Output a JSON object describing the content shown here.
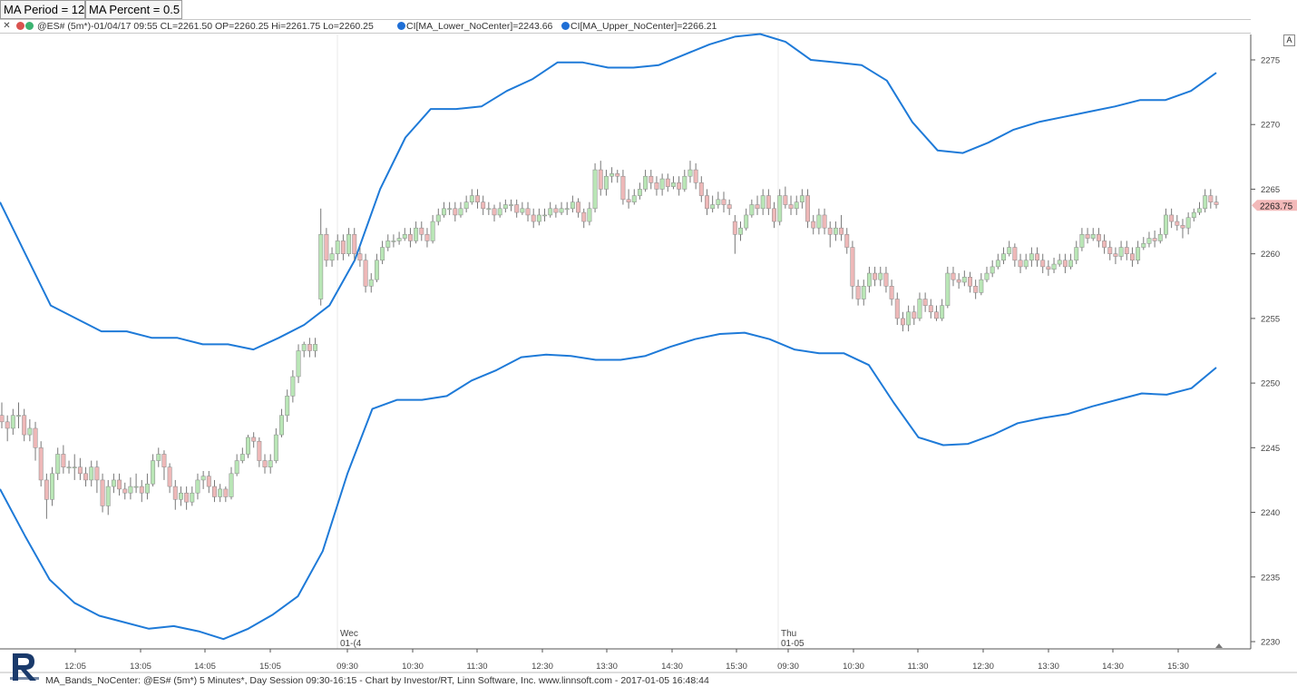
{
  "params": {
    "ma_period_label": "MA Period = 12",
    "ma_percent_label": "MA Percent = 0.5"
  },
  "info": {
    "close_glyph": "✕",
    "symbol_text": "@ES# (5m*)-01/04/17 09:55 CL=2261.50 OP=2260.25 Hi=2261.75 Lo=2260.25",
    "lower_text": "CI[MA_Lower_NoCenter]=2243.66",
    "upper_text": "CI[MA_Upper_NoCenter]=2266.21",
    "dot_colors": [
      "#d9534f",
      "#3cb371",
      "#1f6fd6",
      "#1f6fd6"
    ]
  },
  "a_button_label": "A",
  "footer": "MA_Bands_NoCenter: @ES# (5m*) 5 Minutes*, Day Session 09:30-16:15 - Chart by Investor/RT, Linn Software, Inc. www.linnsoft.com - 2017-01-05 16:48:44",
  "chart_data": {
    "type": "candlestick",
    "price_axis": {
      "min": 2230,
      "max": 2275,
      "ticks": [
        2230,
        2235,
        2240,
        2245,
        2250,
        2255,
        2260,
        2265,
        2270,
        2275
      ]
    },
    "last_price_label": "2263.75",
    "time_ticks": [
      "12:05",
      "13:05",
      "14:05",
      "15:05",
      "09:30",
      "10:30",
      "11:30",
      "12:30",
      "13:30",
      "14:30",
      "15:30",
      "09:30",
      "10:30",
      "11:30",
      "12:30",
      "13:30",
      "14:30",
      "15:30"
    ],
    "session_labels": [
      {
        "day": "Wec",
        "date": "01-(4"
      },
      {
        "day": "Thu",
        "date": "01-05"
      }
    ],
    "colors": {
      "band": "#1e7ad8",
      "up": "#b9e6b6",
      "down": "#eeb8b8",
      "wick": "#777777",
      "last_price_bg": "#f3b9b9"
    },
    "upper_band": [
      2264,
      2260,
      2256,
      2255,
      2254,
      2254,
      2253.5,
      2253.5,
      2253,
      2253,
      2252.6,
      2253.5,
      2254.5,
      2256,
      2259.5,
      2265,
      2269,
      2271.2,
      2271.2,
      2271.4,
      2272.6,
      2273.5,
      2274.8,
      2274.8,
      2274.4,
      2274.4,
      2274.6,
      2275.4,
      2276.2,
      2276.8,
      2277,
      2276.4,
      2275,
      2274.8,
      2274.6,
      2273.4,
      2270.2,
      2268,
      2267.8,
      2268.6,
      2269.6,
      2270.2,
      2270.6,
      2271,
      2271.4,
      2271.9,
      2271.9,
      2272.6,
      2274
    ],
    "lower_band": [
      2241.8,
      2238.2,
      2234.8,
      2233,
      2232,
      2231.5,
      2231,
      2231.2,
      2230.8,
      2230.2,
      2231,
      2232.1,
      2233.5,
      2237,
      2243,
      2248,
      2248.7,
      2248.7,
      2249,
      2250.2,
      2251,
      2252,
      2252.2,
      2252.1,
      2251.8,
      2251.8,
      2252.1,
      2252.8,
      2253.4,
      2253.8,
      2253.9,
      2253.4,
      2252.6,
      2252.3,
      2252.3,
      2251.4,
      2248.5,
      2245.8,
      2245.2,
      2245.3,
      2246,
      2246.9,
      2247.3,
      2247.6,
      2248.2,
      2248.7,
      2249.2,
      2249.1,
      2249.6,
      2251.2
    ],
    "candles": [
      [
        2247.5,
        2247,
        2248.5,
        2246.5
      ],
      [
        2247,
        2246.5,
        2247.5,
        2245.5
      ],
      [
        2246.5,
        2247.5,
        2248,
        2246
      ],
      [
        2247.5,
        2247.5,
        2248.5,
        2246.5
      ],
      [
        2247.5,
        2246,
        2248,
        2245.5
      ],
      [
        2246,
        2246.5,
        2247.2,
        2245.5
      ],
      [
        2246.5,
        2245,
        2247,
        2244
      ],
      [
        2245,
        2242.5,
        2245.5,
        2242
      ],
      [
        2242.5,
        2241,
        2243,
        2239.5
      ],
      [
        2241,
        2243,
        2243.5,
        2240.5
      ],
      [
        2243,
        2244.5,
        2245,
        2242.5
      ],
      [
        2244.5,
        2243.5,
        2245.2,
        2243
      ],
      [
        2243.5,
        2243.5,
        2244,
        2243
      ],
      [
        2243.5,
        2243.5,
        2244.5,
        2242.5
      ],
      [
        2243.5,
        2243,
        2244.2,
        2242.5
      ],
      [
        2243,
        2242.5,
        2243.5,
        2242
      ],
      [
        2242.5,
        2243.5,
        2244,
        2242
      ],
      [
        2243.5,
        2242.5,
        2244,
        2241.5
      ],
      [
        2242.5,
        2240.5,
        2243,
        2240
      ],
      [
        2240.5,
        2242,
        2242.5,
        2239.8
      ],
      [
        2242,
        2242.5,
        2243,
        2241.5
      ],
      [
        2242.5,
        2241.8,
        2243,
        2241.3
      ],
      [
        2241.8,
        2241.5,
        2242.3,
        2241
      ],
      [
        2241.5,
        2242,
        2242.7,
        2241
      ],
      [
        2242,
        2242,
        2243,
        2241.5
      ],
      [
        2242,
        2241.5,
        2242.5,
        2240.8
      ],
      [
        2241.5,
        2242.2,
        2243,
        2241
      ],
      [
        2242.2,
        2244,
        2244.5,
        2242
      ],
      [
        2244,
        2244.5,
        2245,
        2243.5
      ],
      [
        2244.5,
        2243.5,
        2244.8,
        2242.5
      ],
      [
        2243.5,
        2242,
        2243.8,
        2241.5
      ],
      [
        2242,
        2241,
        2242.5,
        2240.2
      ],
      [
        2241,
        2241.5,
        2242,
        2240.5
      ],
      [
        2241.5,
        2240.8,
        2242,
        2240.2
      ],
      [
        2240.8,
        2241.5,
        2242,
        2240.5
      ],
      [
        2241.5,
        2242.5,
        2243,
        2241
      ],
      [
        2242.5,
        2242.8,
        2243.2,
        2241.8
      ],
      [
        2242.8,
        2242,
        2243.2,
        2241.5
      ],
      [
        2242,
        2241.2,
        2242.5,
        2240.8
      ],
      [
        2241.2,
        2241.8,
        2242.2,
        2240.8
      ],
      [
        2241.8,
        2241.2,
        2242,
        2240.8
      ],
      [
        2241.2,
        2243,
        2243.5,
        2241
      ],
      [
        2243,
        2244,
        2244.5,
        2242.8
      ],
      [
        2244,
        2244.5,
        2245,
        2243.8
      ],
      [
        2244.5,
        2245.8,
        2246,
        2244.2
      ],
      [
        2245.8,
        2245.5,
        2246.2,
        2245
      ],
      [
        2245.5,
        2244,
        2245.8,
        2243.5
      ],
      [
        2244,
        2243.5,
        2244.5,
        2243
      ],
      [
        2243.5,
        2244,
        2244.5,
        2243
      ],
      [
        2244,
        2246,
        2246.5,
        2243.8
      ],
      [
        2246,
        2247.5,
        2248,
        2245.8
      ],
      [
        2247.5,
        2249,
        2249.5,
        2247
      ],
      [
        2249,
        2250.5,
        2251,
        2248.5
      ],
      [
        2250.5,
        2252.5,
        2253,
        2250
      ],
      [
        2252.5,
        2253,
        2253.2,
        2252
      ],
      [
        2253,
        2252.5,
        2253.5,
        2252
      ],
      [
        2252.5,
        2253,
        2253.5,
        2252
      ],
      [
        2256.5,
        2261.5,
        2263.5,
        2256
      ],
      [
        2261.5,
        2259.5,
        2262,
        2259
      ],
      [
        2259.5,
        2260,
        2260.5,
        2259
      ],
      [
        2260,
        2261,
        2261.5,
        2259.5
      ],
      [
        2261,
        2260,
        2261.5,
        2259.5
      ],
      [
        2260,
        2261.5,
        2262,
        2259.8
      ],
      [
        2261.5,
        2260,
        2262,
        2259.5
      ],
      [
        2260,
        2259.5,
        2260.5,
        2259
      ],
      [
        2259.5,
        2257.5,
        2260,
        2257
      ],
      [
        2257.5,
        2258,
        2258.5,
        2257
      ],
      [
        2258,
        2259.5,
        2260,
        2257.8
      ],
      [
        2259.5,
        2260.5,
        2261,
        2259.2
      ],
      [
        2260.5,
        2261,
        2261.5,
        2260.2
      ],
      [
        2261,
        2261,
        2261.5,
        2260.5
      ],
      [
        2261,
        2261.2,
        2261.7,
        2260.7
      ],
      [
        2261.2,
        2261.5,
        2262,
        2261
      ],
      [
        2261.5,
        2261,
        2262,
        2260.5
      ],
      [
        2261,
        2262,
        2262.5,
        2260.8
      ],
      [
        2262,
        2261.5,
        2262.5,
        2261
      ],
      [
        2261.5,
        2261,
        2262,
        2260.5
      ],
      [
        2261,
        2262.5,
        2263,
        2260.8
      ],
      [
        2262.5,
        2263,
        2263.5,
        2262.2
      ],
      [
        2263,
        2263.5,
        2264,
        2262.8
      ],
      [
        2263.5,
        2263.5,
        2264,
        2263
      ],
      [
        2263.5,
        2263,
        2264,
        2262.5
      ],
      [
        2263,
        2263.5,
        2264,
        2262.8
      ],
      [
        2263.5,
        2264,
        2264.5,
        2263.2
      ],
      [
        2264,
        2264.5,
        2265,
        2263.8
      ],
      [
        2264.5,
        2264,
        2265,
        2263.5
      ],
      [
        2264,
        2263.5,
        2264.5,
        2263
      ],
      [
        2263.5,
        2263.5,
        2264,
        2263
      ],
      [
        2263.5,
        2263,
        2263.8,
        2262.5
      ],
      [
        2263,
        2263.5,
        2264,
        2262.8
      ],
      [
        2263.5,
        2263.8,
        2264.2,
        2263.2
      ],
      [
        2263.8,
        2263.8,
        2264.2,
        2263.3
      ],
      [
        2263.8,
        2263.2,
        2264.2,
        2262.8
      ],
      [
        2263.2,
        2263.5,
        2264,
        2263
      ],
      [
        2263.5,
        2263,
        2264,
        2262.5
      ],
      [
        2263,
        2262.5,
        2263.5,
        2262
      ],
      [
        2262.5,
        2263,
        2263.5,
        2262.2
      ],
      [
        2263,
        2263,
        2263.5,
        2262.5
      ],
      [
        2263,
        2263.5,
        2264,
        2262.8
      ],
      [
        2263.5,
        2263.2,
        2263.8,
        2262.8
      ],
      [
        2263.2,
        2263.5,
        2264,
        2263
      ],
      [
        2263.5,
        2263.5,
        2264,
        2263
      ],
      [
        2263.5,
        2264,
        2264.5,
        2263.2
      ],
      [
        2264,
        2263.2,
        2264.3,
        2262.8
      ],
      [
        2263.2,
        2262.5,
        2263.5,
        2262
      ],
      [
        2262.5,
        2263.5,
        2264,
        2262.2
      ],
      [
        2263.5,
        2266.5,
        2267,
        2263.2
      ],
      [
        2266.5,
        2265,
        2267.2,
        2264.5
      ],
      [
        2265,
        2266,
        2266.5,
        2264.5
      ],
      [
        2266,
        2266.2,
        2266.7,
        2265.5
      ],
      [
        2266.2,
        2266,
        2266.5,
        2265.5
      ],
      [
        2266,
        2264.2,
        2266.5,
        2263.8
      ],
      [
        2264.2,
        2264,
        2265,
        2263.5
      ],
      [
        2264,
        2264.5,
        2265,
        2263.8
      ],
      [
        2264.5,
        2265,
        2265.5,
        2264.2
      ],
      [
        2265,
        2266,
        2266.5,
        2264.8
      ],
      [
        2266,
        2265.5,
        2266.5,
        2265
      ],
      [
        2265.5,
        2265,
        2266,
        2264.5
      ],
      [
        2265,
        2265.8,
        2266.2,
        2264.5
      ],
      [
        2265.8,
        2265.2,
        2266.2,
        2264.8
      ],
      [
        2265.2,
        2265.5,
        2266,
        2265
      ],
      [
        2265.5,
        2265,
        2266,
        2264.5
      ],
      [
        2265,
        2266,
        2266.5,
        2264.8
      ],
      [
        2266,
        2266.5,
        2267.2,
        2265.5
      ],
      [
        2266.5,
        2265.5,
        2267,
        2265
      ],
      [
        2265.5,
        2264.5,
        2266,
        2264
      ],
      [
        2264.5,
        2263.5,
        2265,
        2263
      ],
      [
        2263.5,
        2263.8,
        2264.5,
        2263.2
      ],
      [
        2263.8,
        2264.2,
        2264.8,
        2263.5
      ],
      [
        2264.2,
        2263.8,
        2264.8,
        2263.2
      ],
      [
        2263.8,
        2263.5,
        2264.2,
        2263
      ],
      [
        2262.5,
        2261.5,
        2263,
        2260
      ],
      [
        2261.5,
        2262,
        2262.5,
        2261
      ],
      [
        2262,
        2263,
        2263.5,
        2261.8
      ],
      [
        2263,
        2263.8,
        2264.2,
        2262.8
      ],
      [
        2263.8,
        2263.5,
        2264.5,
        2263
      ],
      [
        2263.5,
        2264.5,
        2265,
        2263
      ],
      [
        2264.5,
        2263.5,
        2265,
        2263
      ],
      [
        2263.5,
        2262.5,
        2264,
        2262
      ],
      [
        2262.5,
        2264.5,
        2265,
        2262.2
      ],
      [
        2264.5,
        2263.8,
        2265.2,
        2263.5
      ],
      [
        2263.8,
        2263.5,
        2264.5,
        2263
      ],
      [
        2263.5,
        2264,
        2264.5,
        2263
      ],
      [
        2264,
        2264.5,
        2265,
        2263.5
      ],
      [
        2264.5,
        2262.5,
        2265,
        2262
      ],
      [
        2262.5,
        2262,
        2263,
        2261.5
      ],
      [
        2262,
        2263,
        2263.5,
        2261.5
      ],
      [
        2263,
        2262,
        2263.5,
        2261.5
      ],
      [
        2262,
        2261.5,
        2262.5,
        2260.5
      ],
      [
        2261.5,
        2262,
        2262.5,
        2261
      ],
      [
        2262,
        2261.5,
        2263,
        2261
      ],
      [
        2261.5,
        2260.5,
        2262,
        2260
      ],
      [
        2260.5,
        2257.5,
        2261,
        2256.5
      ],
      [
        2257.5,
        2256.5,
        2258,
        2256
      ],
      [
        2256.5,
        2257.5,
        2258,
        2256
      ],
      [
        2257.5,
        2258.5,
        2259,
        2257
      ],
      [
        2258.5,
        2258,
        2259,
        2257.5
      ],
      [
        2258,
        2258.5,
        2259,
        2257.5
      ],
      [
        2258.5,
        2257.5,
        2259,
        2257
      ],
      [
        2257.5,
        2256.5,
        2258,
        2256
      ],
      [
        2256.5,
        2255,
        2257,
        2254.5
      ],
      [
        2255,
        2254.5,
        2255.5,
        2254
      ],
      [
        2254.5,
        2255.5,
        2256,
        2254
      ],
      [
        2255.5,
        2255,
        2256,
        2254.5
      ],
      [
        2255,
        2256.5,
        2257,
        2254.8
      ],
      [
        2256.5,
        2256,
        2257,
        2255.5
      ],
      [
        2256,
        2255.5,
        2256.5,
        2255
      ],
      [
        2255.5,
        2255,
        2256,
        2254.8
      ],
      [
        2255,
        2256,
        2256.5,
        2254.8
      ],
      [
        2256,
        2258.5,
        2259,
        2255.8
      ],
      [
        2258.5,
        2258,
        2259,
        2257.5
      ],
      [
        2258,
        2257.8,
        2258.5,
        2257.3
      ],
      [
        2257.8,
        2258.2,
        2258.7,
        2257.5
      ],
      [
        2258.2,
        2257.5,
        2258.6,
        2257
      ],
      [
        2257.5,
        2257,
        2258,
        2256.5
      ],
      [
        2257,
        2258,
        2258.5,
        2256.8
      ],
      [
        2258,
        2258.5,
        2259,
        2257.8
      ],
      [
        2258.5,
        2259,
        2259.5,
        2258.2
      ],
      [
        2259,
        2259.5,
        2260,
        2258.8
      ],
      [
        2259.5,
        2260,
        2260.5,
        2259.2
      ],
      [
        2260,
        2260.5,
        2261,
        2259.8
      ],
      [
        2260.5,
        2259.5,
        2260.8,
        2259
      ],
      [
        2259.5,
        2259,
        2260,
        2258.5
      ],
      [
        2259,
        2259.5,
        2260,
        2258.8
      ],
      [
        2259.5,
        2260,
        2260.5,
        2259
      ],
      [
        2260,
        2259.5,
        2260.5,
        2259
      ],
      [
        2259.5,
        2259,
        2260,
        2258.5
      ],
      [
        2259,
        2258.8,
        2259.5,
        2258.3
      ],
      [
        2258.8,
        2259.2,
        2259.7,
        2258.5
      ],
      [
        2259.2,
        2259.5,
        2260,
        2259
      ],
      [
        2259.5,
        2259,
        2260,
        2258.5
      ],
      [
        2259,
        2259.5,
        2260,
        2258.8
      ],
      [
        2259.5,
        2260.5,
        2261,
        2259.2
      ],
      [
        2260.5,
        2261.5,
        2262,
        2260.2
      ],
      [
        2261.5,
        2261.2,
        2262,
        2260.8
      ],
      [
        2261.2,
        2261.5,
        2262,
        2261
      ],
      [
        2261.5,
        2261,
        2262,
        2260.5
      ],
      [
        2261,
        2260.5,
        2261.5,
        2260
      ],
      [
        2260.5,
        2260,
        2261,
        2259.5
      ],
      [
        2260,
        2259.8,
        2260.5,
        2259.2
      ],
      [
        2259.8,
        2260.5,
        2261,
        2259.5
      ],
      [
        2260.5,
        2260,
        2261,
        2259.5
      ],
      [
        2260,
        2259.5,
        2260.5,
        2259
      ],
      [
        2259.5,
        2260.5,
        2261,
        2259.2
      ],
      [
        2260.5,
        2260.8,
        2261.3,
        2260.3
      ],
      [
        2260.8,
        2261.2,
        2261.7,
        2260.5
      ],
      [
        2261.2,
        2261,
        2261.8,
        2260.5
      ],
      [
        2261,
        2261.5,
        2262,
        2260.8
      ],
      [
        2261.5,
        2263,
        2263.5,
        2261.2
      ],
      [
        2263,
        2262.5,
        2263.5,
        2262
      ],
      [
        2262.5,
        2262.2,
        2263,
        2261.8
      ],
      [
        2262.2,
        2262,
        2262.7,
        2261.2
      ],
      [
        2262,
        2262.8,
        2263.2,
        2261.5
      ],
      [
        2262.8,
        2263.2,
        2263.5,
        2262.5
      ],
      [
        2263.2,
        2263.5,
        2264,
        2263
      ],
      [
        2263.5,
        2264.5,
        2265,
        2263.2
      ],
      [
        2264.5,
        2264,
        2265,
        2263.5
      ],
      [
        2264,
        2263.8,
        2264.5,
        2263.5
      ]
    ]
  }
}
